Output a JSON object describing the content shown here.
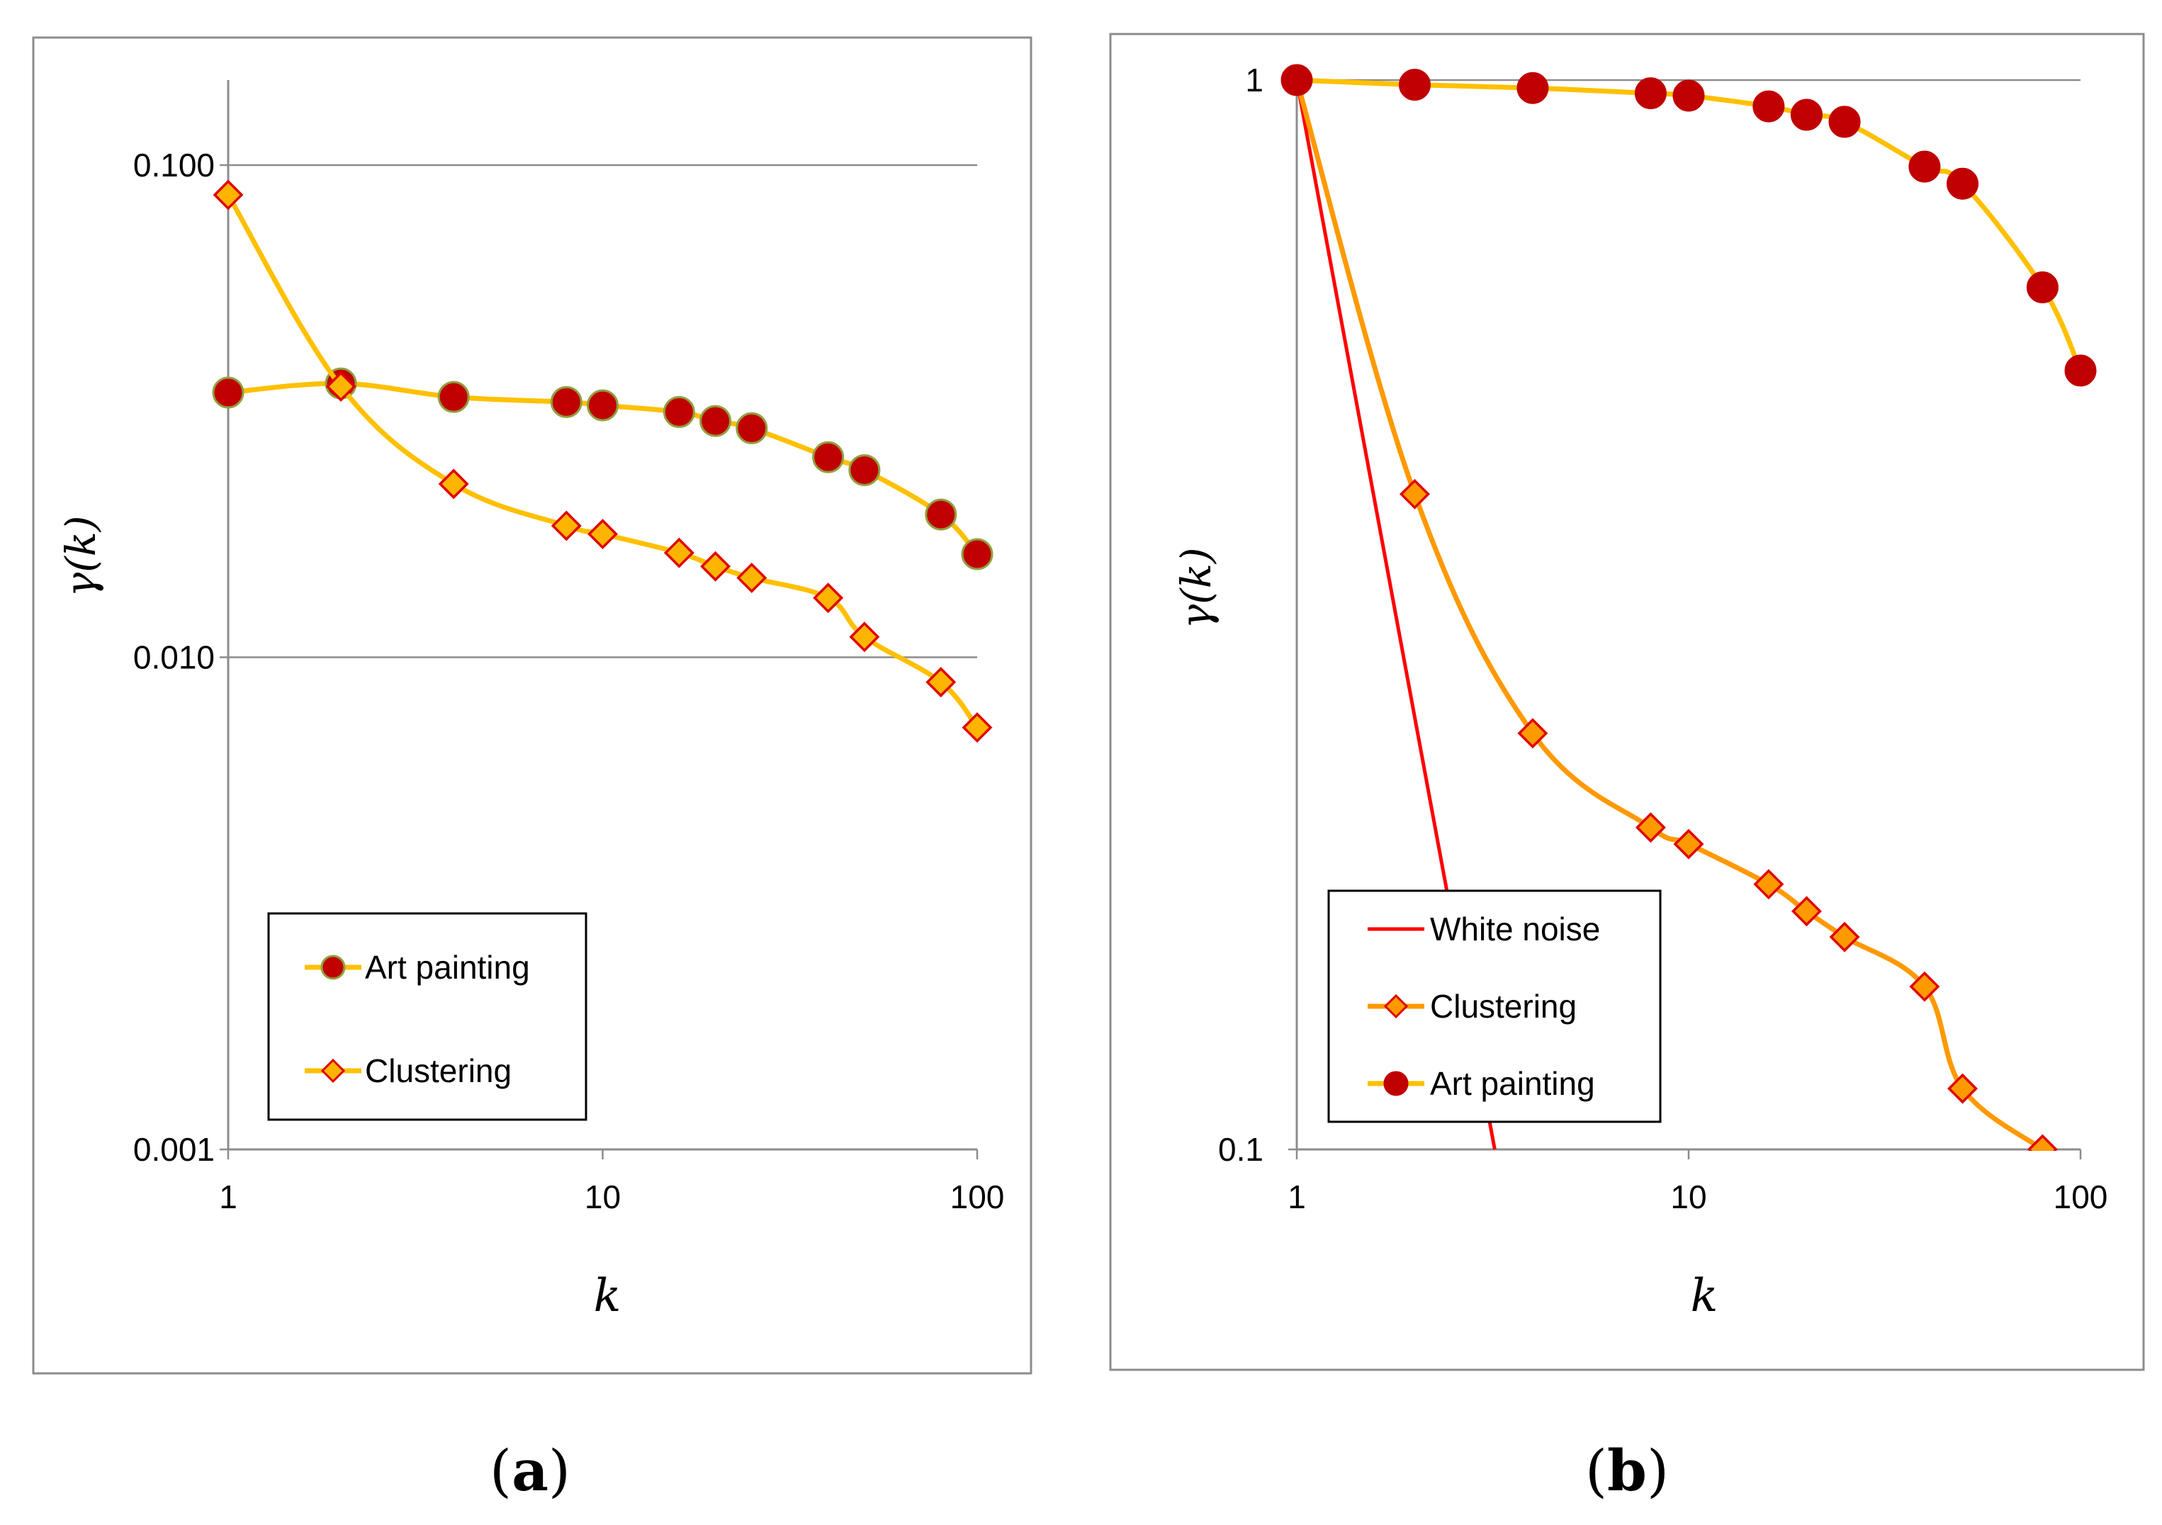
{
  "chart_data": [
    {
      "id": "a",
      "panel_label": "a",
      "type": "line",
      "xscale": "log",
      "yscale": "log",
      "xlabel": "k",
      "ylabel": "γ(k)",
      "xlim": [
        1,
        100
      ],
      "ylim": [
        0.001,
        0.15
      ],
      "xticks": [
        1,
        10,
        100
      ],
      "xtick_labels": [
        "1",
        "10",
        "100"
      ],
      "yticks": [
        0.001,
        0.01,
        0.1
      ],
      "ytick_labels": [
        "0.001",
        "0.010",
        "0.100"
      ],
      "grid": true,
      "legend_position": "bottom-left",
      "series": [
        {
          "name": "Art painting",
          "marker": "circle",
          "line_color": "#FFC000",
          "marker_fill": "#C00000",
          "marker_edge": "#92A040",
          "x": [
            1,
            2,
            4,
            8,
            10,
            16,
            20,
            25,
            40,
            50,
            80,
            100
          ],
          "y": [
            0.0345,
            0.036,
            0.0338,
            0.033,
            0.0325,
            0.0315,
            0.0302,
            0.0292,
            0.0255,
            0.024,
            0.0195,
            0.0162
          ]
        },
        {
          "name": "Clustering",
          "marker": "diamond",
          "line_color": "#FFC000",
          "marker_fill": "#FFB400",
          "marker_edge": "#E00000",
          "x": [
            1,
            2,
            4,
            8,
            10,
            16,
            20,
            25,
            40,
            50,
            80,
            100
          ],
          "y": [
            0.087,
            0.0355,
            0.0225,
            0.0185,
            0.0178,
            0.0163,
            0.0153,
            0.0145,
            0.0132,
            0.011,
            0.0089,
            0.0072
          ]
        }
      ]
    },
    {
      "id": "b",
      "panel_label": "b",
      "type": "line",
      "xscale": "log",
      "yscale": "log",
      "xlabel": "k",
      "ylabel": "γ(k)",
      "xlim": [
        1,
        100
      ],
      "ylim": [
        0.1,
        1
      ],
      "xticks": [
        1,
        10,
        100
      ],
      "xtick_labels": [
        "1",
        "10",
        "100"
      ],
      "yticks": [
        0.1,
        1
      ],
      "ytick_labels": [
        "0.1",
        "1"
      ],
      "grid": true,
      "legend_position": "bottom-left",
      "series": [
        {
          "name": "White noise",
          "marker": "none",
          "line_color": "#FF0000",
          "x": [
            1,
            3.2
          ],
          "y": [
            1,
            0.1
          ]
        },
        {
          "name": "Clustering",
          "marker": "diamond",
          "line_color": "#FF9900",
          "marker_fill": "#FF9900",
          "marker_edge": "#E00000",
          "x": [
            1,
            2,
            4,
            8,
            10,
            16,
            20,
            25,
            40,
            50,
            80
          ],
          "y": [
            1,
            0.41,
            0.245,
            0.2,
            0.193,
            0.177,
            0.167,
            0.158,
            0.142,
            0.114,
            0.1
          ]
        },
        {
          "name": "Art painting",
          "marker": "circle",
          "line_color": "#FFC000",
          "marker_fill": "#C00000",
          "marker_edge": "#C00000",
          "x": [
            1,
            2,
            4,
            8,
            10,
            16,
            20,
            25,
            40,
            50,
            80,
            100
          ],
          "y": [
            1.0,
            0.99,
            0.983,
            0.972,
            0.967,
            0.945,
            0.928,
            0.914,
            0.83,
            0.8,
            0.64,
            0.535
          ]
        }
      ]
    }
  ]
}
